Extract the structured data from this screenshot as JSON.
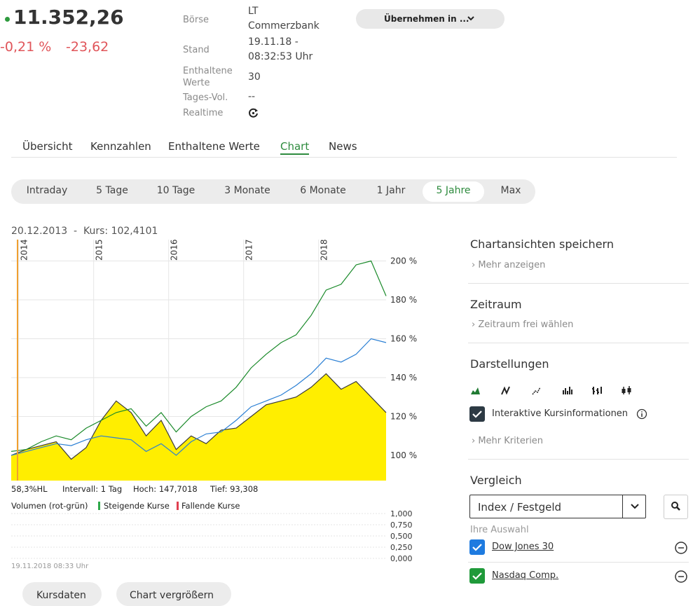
{
  "header": {
    "price": "11.352,26",
    "change_pct": "-0,21 %",
    "change_abs": "-23,62",
    "info": [
      {
        "label": "Börse",
        "value": "LT Commerzbank"
      },
      {
        "label": "Stand",
        "value": "19.11.18 - 08:32:53 Uhr"
      },
      {
        "label": "Enthaltene Werte",
        "value": "30"
      },
      {
        "label": "Tages-Vol.",
        "value": "--"
      },
      {
        "label": "Realtime"
      }
    ],
    "button": "Übernehmen in ..."
  },
  "tabs": {
    "items": [
      "Übersicht",
      "Kennzahlen",
      "Enthaltene Werte",
      "Chart",
      "News"
    ],
    "active": 3
  },
  "ranges": {
    "items": [
      "Intraday",
      "5 Tage",
      "10 Tage",
      "3 Monate",
      "6 Monate",
      "1 Jahr",
      "5 Jahre",
      "Max"
    ],
    "active": 6
  },
  "chart_data": {
    "type": "line",
    "caption": "20.12.2013  -  Kurs: 102,4101",
    "x": [
      2013.9,
      2014.1,
      2014.3,
      2014.5,
      2014.7,
      2014.9,
      2015.1,
      2015.3,
      2015.5,
      2015.7,
      2015.9,
      2016.1,
      2016.3,
      2016.5,
      2016.7,
      2016.9,
      2017.1,
      2017.3,
      2017.5,
      2017.7,
      2017.9,
      2018.1,
      2018.3,
      2018.5,
      2018.7,
      2018.9
    ],
    "xlim": [
      2013.9,
      2018.9
    ],
    "xticks": [
      2014,
      2015,
      2016,
      2017,
      2018
    ],
    "ylim": [
      87,
      211
    ],
    "yticks": [
      {
        "value": 100,
        "label": "100 %"
      },
      {
        "value": 120,
        "label": "120 %"
      },
      {
        "value": 140,
        "label": "140 %"
      },
      {
        "value": 160,
        "label": "160 %"
      },
      {
        "value": 180,
        "label": "180 %"
      },
      {
        "value": 200,
        "label": "200 %"
      }
    ],
    "grid": true,
    "series": [
      {
        "color": "#ffee00",
        "line": "#3a3a3a",
        "fill": true,
        "values": [
          100,
          103,
          105,
          107,
          98,
          104,
          118,
          128,
          122,
          110,
          118,
          103,
          110,
          106,
          113,
          114,
          120,
          126,
          128,
          130,
          135,
          142,
          134,
          138,
          130,
          122
        ]
      },
      {
        "color": "#2a7fd4",
        "values": [
          100,
          102,
          104,
          106,
          105,
          108,
          110,
          109,
          108,
          102,
          106,
          100,
          107,
          111,
          112,
          118,
          125,
          128,
          131,
          136,
          142,
          150,
          148,
          152,
          160,
          158
        ]
      },
      {
        "color": "#1a8a2a",
        "values": [
          102,
          103,
          107,
          110,
          108,
          114,
          118,
          122,
          124,
          115,
          122,
          112,
          120,
          125,
          128,
          135,
          145,
          152,
          158,
          162,
          172,
          185,
          188,
          198,
          200,
          182
        ]
      }
    ],
    "stats": [
      "58,3%HL",
      "Intervall: 1 Tag",
      "Hoch: 147,7018",
      "Tief: 93,308"
    ]
  },
  "volume": {
    "legend": [
      "Volumen (rot-grün)",
      "Steigende Kurse",
      "Fallende Kurse"
    ],
    "ylim": [
      0,
      1
    ],
    "yticks": [
      {
        "value": 0,
        "label": "0,000"
      },
      {
        "value": 0.25,
        "label": "0,250"
      },
      {
        "value": 0.5,
        "label": "0,500"
      },
      {
        "value": 0.75,
        "label": "0,750"
      },
      {
        "value": 1,
        "label": "1,000"
      }
    ],
    "timestamp": "19.11.2018 08:33 Uhr"
  },
  "buttons": [
    "Kursdaten",
    "Chart vergrößern"
  ],
  "sidebar": {
    "save": {
      "title": "Chartansichten speichern",
      "link": "Mehr anzeigen"
    },
    "period": {
      "title": "Zeitraum",
      "link": "Zeitraum frei wählen"
    },
    "views": {
      "title": "Darstellungen",
      "checkbox": "Interaktive Kursinformationen",
      "link": "Mehr Kriterien"
    },
    "compare": {
      "title": "Vergleich",
      "select": "Index / Festgeld",
      "selection_label": "Ihre Auswahl",
      "items": [
        "Dow Jones 30",
        "Nasdaq Comp."
      ]
    }
  }
}
